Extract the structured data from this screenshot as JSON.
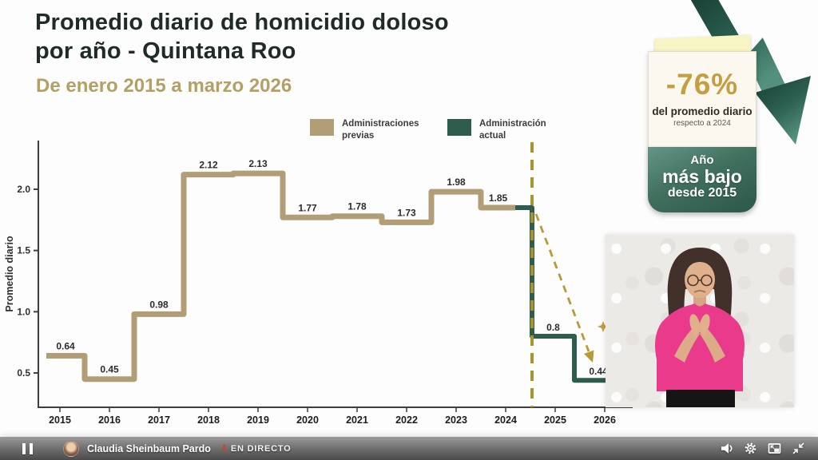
{
  "header": {
    "title_line1": "Promedio diario de homicidio doloso",
    "title_line2": "por año - Quintana Roo",
    "subtitle": "De enero 2015 a marzo 2026"
  },
  "legend": {
    "previous_label": "Administraciones previas",
    "current_label": "Administración actual",
    "previous_color": "#b19e77",
    "current_color": "#2e5c4d"
  },
  "chart_data": {
    "type": "line",
    "step_style": true,
    "title": "Promedio diario de homicidio doloso por año - Quintana Roo",
    "subtitle": "De enero 2015 a marzo 2026",
    "xlabel": "",
    "ylabel": "Promedio diario",
    "categories": [
      2015,
      2016,
      2017,
      2018,
      2019,
      2020,
      2021,
      2022,
      2023,
      2024,
      2025,
      2026
    ],
    "series": [
      {
        "name": "Administraciones previas",
        "color": "#b19e77",
        "x": [
          2015,
          2016,
          2017,
          2018,
          2019,
          2020,
          2021,
          2022,
          2023,
          2024
        ],
        "values": [
          0.64,
          0.45,
          0.98,
          2.12,
          2.13,
          1.77,
          1.78,
          1.73,
          1.98,
          1.85
        ],
        "labels": [
          "0.64",
          "0.45",
          "0.98",
          "2.12",
          "2.13",
          "1.77",
          "1.78",
          "1.73",
          "1.98",
          "1.85"
        ]
      },
      {
        "name": "Administración actual",
        "color": "#2e5c4d",
        "x": [
          2024,
          2025,
          2026
        ],
        "values": [
          1.85,
          0.8,
          0.44
        ],
        "labels": [
          "",
          "0.8",
          "0.44"
        ]
      }
    ],
    "yticks": [
      0.5,
      1.0,
      1.5,
      2.0
    ],
    "ylim": [
      0.2,
      2.35
    ],
    "grid": false,
    "legend_position": "top",
    "annotations": {
      "dashed_vline_between": "2024 and 2025",
      "dashed_vline_color": "#a7952f",
      "projection_arrow": "dashed gold arrow pointing down-right from 1.85 toward 2026 value",
      "projection_arrow_color": "#b99b35",
      "star_marker_near_arrow": true
    }
  },
  "infographic": {
    "pct_change": "-76%",
    "pct_caption": "del promedio diario",
    "pct_subcaption": "respecto a 2024",
    "badge_line1": "Año",
    "badge_line2": "más bajo",
    "badge_line3": "desde 2015",
    "accent_gold": "#c49e41",
    "badge_green": "#35614f",
    "trend_arrow_direction": "down"
  },
  "player": {
    "channel_name": "Claudia Sheinbaum Pardo",
    "live_label": "EN DIRECTO",
    "state": "playing",
    "icons": {
      "left": [
        "pause-icon",
        "channel-avatar"
      ],
      "right": [
        "volume-icon",
        "settings-gear-icon",
        "miniplayer-icon",
        "shrink-icon"
      ]
    }
  }
}
